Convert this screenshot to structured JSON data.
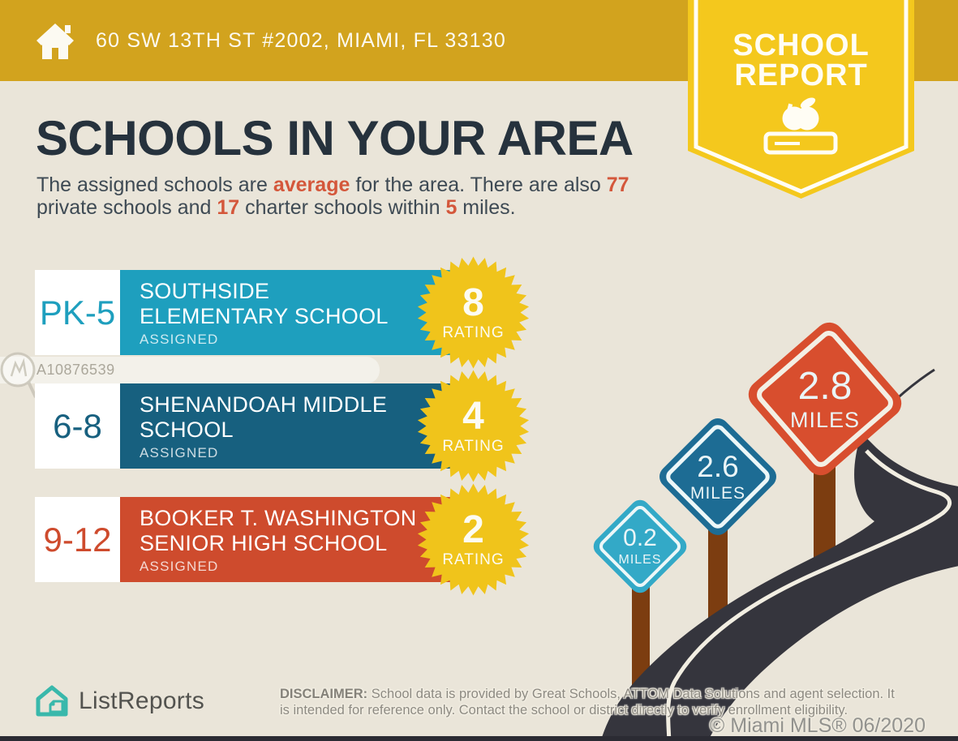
{
  "header": {
    "address": "60 SW 13TH ST #2002, MIAMI, FL 33130",
    "bg_color": "#D2A31E"
  },
  "ribbon": {
    "line1": "SCHOOL",
    "line2": "REPORT",
    "bg_color": "#F4C81D",
    "icon": "apple-on-book-icon"
  },
  "title": "SCHOOLS IN YOUR AREA",
  "subtitle_segments": [
    {
      "text": "The assigned schools are ",
      "accent": false
    },
    {
      "text": "average",
      "accent": true
    },
    {
      "text": " for the area. There are also ",
      "accent": false
    },
    {
      "text": "77",
      "accent": true
    },
    {
      "text": " private schools and ",
      "accent": false
    },
    {
      "text": "17",
      "accent": true
    },
    {
      "text": " charter schools within ",
      "accent": false
    },
    {
      "text": "5",
      "accent": true
    },
    {
      "text": " miles.",
      "accent": false
    }
  ],
  "accent_color": "#D4573B",
  "title_color": "#26323D",
  "schools": [
    {
      "grades": "PK-5",
      "name_lines": [
        "SOUTHSIDE",
        "ELEMENTARY SCHOOL"
      ],
      "status": "ASSIGNED",
      "rating": "8",
      "rating_label": "RATING",
      "color": "#1E9FBE"
    },
    {
      "grades": "6-8",
      "name_lines": [
        "SHENANDOAH MIDDLE",
        "SCHOOL"
      ],
      "status": "ASSIGNED",
      "rating": "4",
      "rating_label": "RATING",
      "color": "#17607F"
    },
    {
      "grades": "9-12",
      "name_lines": [
        "BOOKER T. WASHINGTON",
        "SENIOR HIGH SCHOOL"
      ],
      "status": "ASSIGNED",
      "rating": "2",
      "rating_label": "RATING",
      "color": "#CE4B2D"
    }
  ],
  "badge_color": "#F0C41B",
  "signs": [
    {
      "value": "0.2",
      "unit": "MILES",
      "color": "#33A9C7"
    },
    {
      "value": "2.6",
      "unit": "MILES",
      "color": "#1D6C94"
    },
    {
      "value": "2.8",
      "unit": "MILES",
      "color": "#D84E2E"
    }
  ],
  "road_color": "#35353D",
  "post_color": "#7C3D10",
  "watermark": {
    "id": "A10876539"
  },
  "footer": {
    "brand": "ListReports",
    "brand_color": "#39B8AB",
    "disclaimer_label": "DISCLAIMER:",
    "disclaimer_line1": " School data is provided by Great Schools, ATTOM Data Solutions and agent selection. It",
    "disclaimer_line2": "is intended for reference only. Contact the school or district directly to verify enrollment eligibility.",
    "copyright": "© Miami MLS® 06/2020"
  }
}
